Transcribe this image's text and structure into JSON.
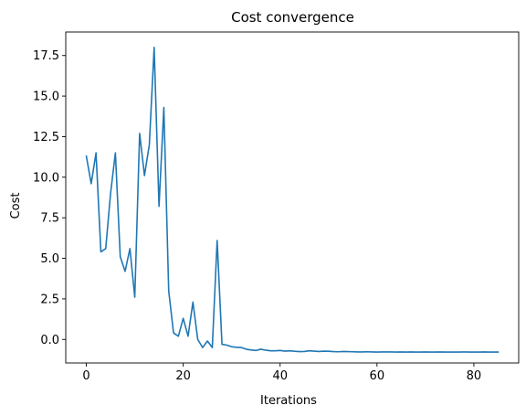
{
  "chart_data": {
    "type": "line",
    "title": "Cost convergence",
    "xlabel": "Iterations",
    "ylabel": "Cost",
    "xlim": [
      -4.25,
      89.25
    ],
    "ylim": [
      -1.45,
      18.95
    ],
    "xticks": [
      0,
      20,
      40,
      60,
      80
    ],
    "yticks": [
      0.0,
      2.5,
      5.0,
      7.5,
      10.0,
      12.5,
      15.0,
      17.5
    ],
    "xtick_labels": [
      "0",
      "20",
      "40",
      "60",
      "80"
    ],
    "ytick_labels": [
      "0.0",
      "2.5",
      "5.0",
      "7.5",
      "10.0",
      "12.5",
      "15.0",
      "17.5"
    ],
    "grid": false,
    "line_color": "#1f77b4",
    "series": [
      {
        "x": [
          0,
          1,
          2,
          3,
          4,
          5,
          6,
          7,
          8,
          9,
          10,
          11,
          12,
          13,
          14,
          15,
          16,
          17,
          18,
          19,
          20,
          21,
          22,
          23,
          24,
          25,
          26,
          27,
          28,
          29,
          30,
          31,
          32,
          33,
          34,
          35,
          36,
          37,
          38,
          39,
          40,
          41,
          42,
          43,
          44,
          45,
          46,
          47,
          48,
          49,
          50,
          51,
          52,
          53,
          54,
          55,
          56,
          57,
          58,
          59,
          60,
          61,
          62,
          63,
          64,
          65,
          66,
          67,
          68,
          69,
          70,
          71,
          72,
          73,
          74,
          75,
          76,
          77,
          78,
          79,
          80,
          81,
          82,
          83,
          84,
          85
        ],
        "values": [
          11.3,
          9.6,
          11.5,
          5.4,
          5.6,
          9.0,
          11.5,
          5.1,
          4.2,
          5.6,
          2.6,
          12.7,
          10.1,
          12.0,
          18.0,
          8.2,
          14.3,
          3.0,
          0.4,
          0.2,
          1.3,
          0.2,
          2.3,
          0.0,
          -0.5,
          -0.1,
          -0.5,
          6.1,
          -0.3,
          -0.35,
          -0.45,
          -0.48,
          -0.5,
          -0.6,
          -0.65,
          -0.68,
          -0.6,
          -0.66,
          -0.7,
          -0.7,
          -0.68,
          -0.72,
          -0.7,
          -0.73,
          -0.75,
          -0.74,
          -0.7,
          -0.72,
          -0.74,
          -0.72,
          -0.73,
          -0.75,
          -0.76,
          -0.74,
          -0.75,
          -0.76,
          -0.77,
          -0.77,
          -0.76,
          -0.77,
          -0.78,
          -0.77,
          -0.77,
          -0.77,
          -0.78,
          -0.77,
          -0.78,
          -0.77,
          -0.78,
          -0.78,
          -0.77,
          -0.78,
          -0.78,
          -0.77,
          -0.78,
          -0.78,
          -0.78,
          -0.78,
          -0.77,
          -0.78,
          -0.78,
          -0.78,
          -0.77,
          -0.78,
          -0.78,
          -0.78
        ]
      }
    ]
  }
}
